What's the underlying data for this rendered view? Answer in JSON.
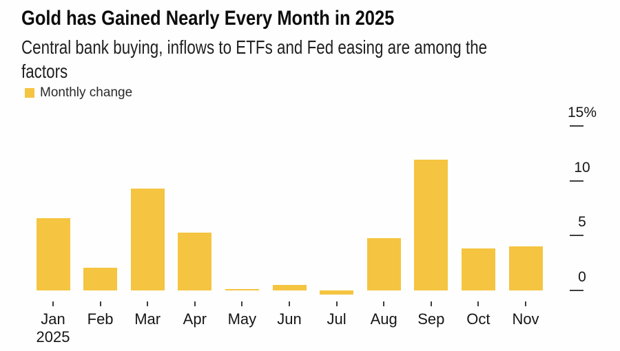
{
  "header": {
    "title": "Gold has Gained Nearly Every Month in 2025",
    "subtitle_lines": [
      "Central bank buying, inflows to ETFs and Fed easing are among the",
      "factors"
    ]
  },
  "legend": {
    "label": "Monthly change",
    "swatch_color": "#F5C440"
  },
  "chart_data": {
    "type": "bar",
    "title": "Gold has Gained Nearly Every Month in 2025",
    "subtitle": "Central bank buying, inflows to ETFs and Fed easing are among the factors",
    "categories": [
      "Jan",
      "Feb",
      "Mar",
      "Apr",
      "May",
      "Jun",
      "Jul",
      "Aug",
      "Sep",
      "Oct",
      "Nov"
    ],
    "series": [
      {
        "name": "Monthly change",
        "values": [
          6.6,
          2.1,
          9.3,
          5.3,
          0.1,
          0.5,
          -0.4,
          4.8,
          11.9,
          3.8,
          4.0
        ]
      }
    ],
    "unit": "%",
    "x_axis_year_label": "2025",
    "xlabel": "",
    "ylabel": "",
    "ytick_values": [
      0,
      5,
      10,
      15
    ],
    "ytick_labels": [
      "0",
      "5",
      "10",
      "15%"
    ],
    "ylim": [
      -0.5,
      15.5
    ],
    "y_axis_side": "right",
    "grid": "off",
    "legend_position": "top-left",
    "bar_color": "#F5C440"
  }
}
